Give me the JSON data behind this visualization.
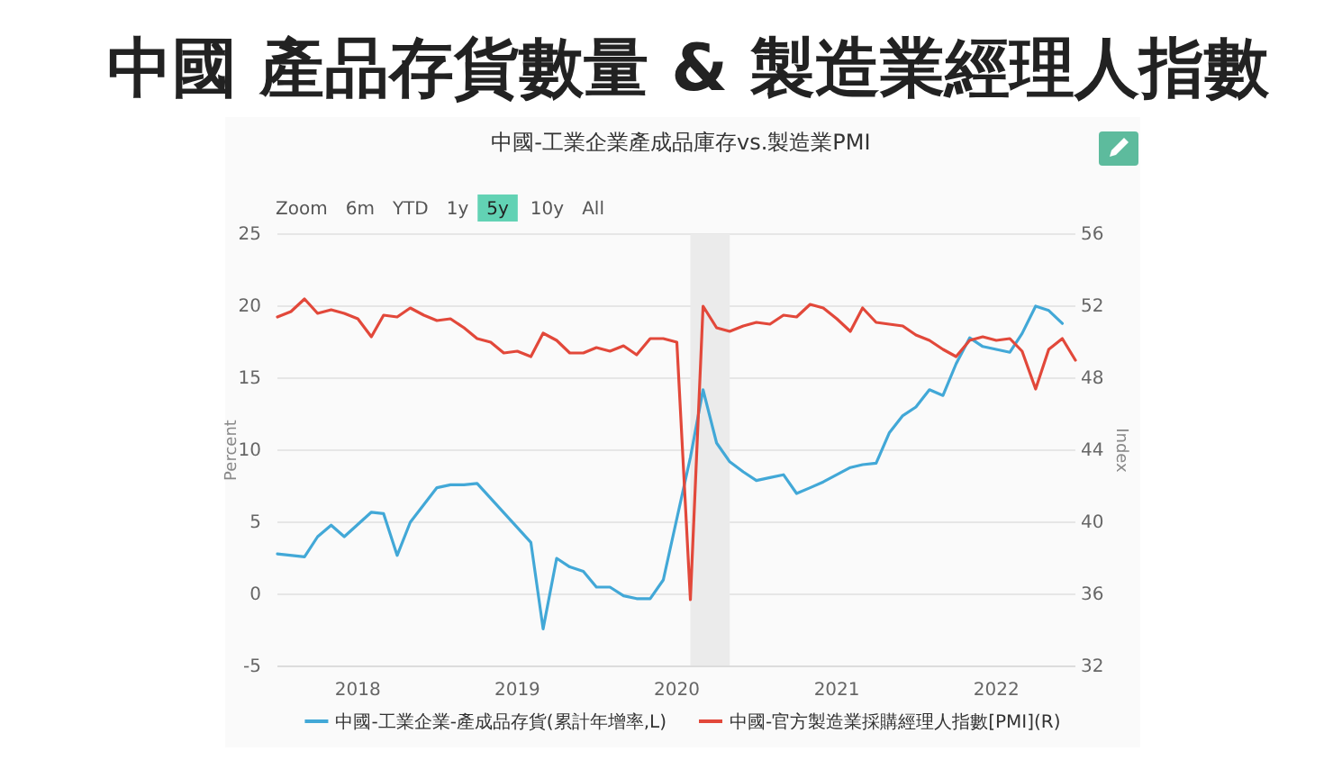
{
  "chart_data": {
    "type": "line",
    "title": "中國 產品存貨數量 & 製造業經理人指數",
    "subtitle": "中國-工業企業產成品庫存vs.製造業PMI",
    "ylabel": "Percent",
    "y2label": "Index",
    "annotations": [
      "Zoom",
      "6m",
      "YTD",
      "1y",
      "5y",
      "10y",
      "All"
    ],
    "xlim": [
      "2017-07",
      "2022-07"
    ],
    "xticks": [
      {
        "value": "2018",
        "label": "2018"
      },
      {
        "value": "2019",
        "label": "2019"
      },
      {
        "value": "2020",
        "label": "2020"
      },
      {
        "value": "2021",
        "label": "2021"
      },
      {
        "value": "2022",
        "label": "2022"
      }
    ],
    "ylim": [
      -5,
      25
    ],
    "yticks": [
      -5,
      0,
      5,
      10,
      15,
      20,
      25
    ],
    "y2lim": [
      32,
      56
    ],
    "y2ticks": [
      32,
      36,
      40,
      44,
      48,
      52,
      56
    ],
    "grid": "y",
    "legend": "bottom",
    "bands": [
      {
        "axis": "x",
        "from": "2020-02",
        "to": "2020-05",
        "color": "#ebebeb"
      }
    ],
    "series": [
      {
        "name": "中國-工業企業-產成品存貨(累計年增率,L)",
        "color": "#42a8d7",
        "axis": "y",
        "x": [
          "2017-07",
          "2017-09",
          "2017-10",
          "2017-11",
          "2017-12",
          "2018-02",
          "2018-03",
          "2018-04",
          "2018-05",
          "2018-07",
          "2018-08",
          "2018-09",
          "2018-10",
          "2019-02",
          "2019-03",
          "2019-04",
          "2019-05",
          "2019-06",
          "2019-07",
          "2019-08",
          "2019-09",
          "2019-10",
          "2019-11",
          "2019-12",
          "2020-02",
          "2020-03",
          "2020-04",
          "2020-05",
          "2020-06",
          "2020-07",
          "2020-08",
          "2020-09",
          "2020-10",
          "2020-11",
          "2020-12",
          "2021-02",
          "2021-03",
          "2021-04",
          "2021-05",
          "2021-06",
          "2021-07",
          "2021-08",
          "2021-09",
          "2021-10",
          "2021-11",
          "2021-12",
          "2022-02",
          "2022-03",
          "2022-04",
          "2022-05",
          "2022-06"
        ],
        "values": [
          2.8,
          2.6,
          4.0,
          4.8,
          4.0,
          5.7,
          5.6,
          2.7,
          5.0,
          7.4,
          7.6,
          7.6,
          7.7,
          3.6,
          -2.4,
          2.5,
          1.9,
          1.6,
          0.5,
          0.5,
          -0.1,
          -0.3,
          -0.3,
          1.0,
          9.5,
          14.2,
          10.5,
          9.2,
          8.5,
          7.9,
          8.1,
          8.3,
          7.0,
          7.4,
          7.8,
          8.8,
          9.0,
          9.1,
          11.2,
          12.4,
          13.0,
          14.2,
          13.8,
          16.0,
          17.8,
          17.2,
          16.8,
          18.1,
          20.0,
          19.7,
          18.8
        ]
      },
      {
        "name": "中國-官方製造業採購經理人指數[PMI](R)",
        "color": "#e2483a",
        "axis": "y2",
        "x": [
          "2017-07",
          "2017-08",
          "2017-09",
          "2017-10",
          "2017-11",
          "2017-12",
          "2018-01",
          "2018-02",
          "2018-03",
          "2018-04",
          "2018-05",
          "2018-06",
          "2018-07",
          "2018-08",
          "2018-09",
          "2018-10",
          "2018-11",
          "2018-12",
          "2019-01",
          "2019-02",
          "2019-03",
          "2019-04",
          "2019-05",
          "2019-06",
          "2019-07",
          "2019-08",
          "2019-09",
          "2019-10",
          "2019-11",
          "2019-12",
          "2020-01",
          "2020-02",
          "2020-03",
          "2020-04",
          "2020-05",
          "2020-06",
          "2020-07",
          "2020-08",
          "2020-09",
          "2020-10",
          "2020-11",
          "2020-12",
          "2021-01",
          "2021-02",
          "2021-03",
          "2021-04",
          "2021-05",
          "2021-06",
          "2021-07",
          "2021-08",
          "2021-09",
          "2021-10",
          "2021-11",
          "2021-12",
          "2022-01",
          "2022-02",
          "2022-03",
          "2022-04",
          "2022-05",
          "2022-06",
          "2022-07"
        ],
        "values": [
          51.4,
          51.7,
          52.4,
          51.6,
          51.8,
          51.6,
          51.3,
          50.3,
          51.5,
          51.4,
          51.9,
          51.5,
          51.2,
          51.3,
          50.8,
          50.2,
          50.0,
          49.4,
          49.5,
          49.2,
          50.5,
          50.1,
          49.4,
          49.4,
          49.7,
          49.5,
          49.8,
          49.3,
          50.2,
          50.2,
          50.0,
          35.7,
          52.0,
          50.8,
          50.6,
          50.9,
          51.1,
          51.0,
          51.5,
          51.4,
          52.1,
          51.9,
          51.3,
          50.6,
          51.9,
          51.1,
          51.0,
          50.9,
          50.4,
          50.1,
          49.6,
          49.2,
          50.1,
          50.3,
          50.1,
          50.2,
          49.5,
          47.4,
          49.6,
          50.2,
          49.0
        ]
      }
    ]
  }
}
